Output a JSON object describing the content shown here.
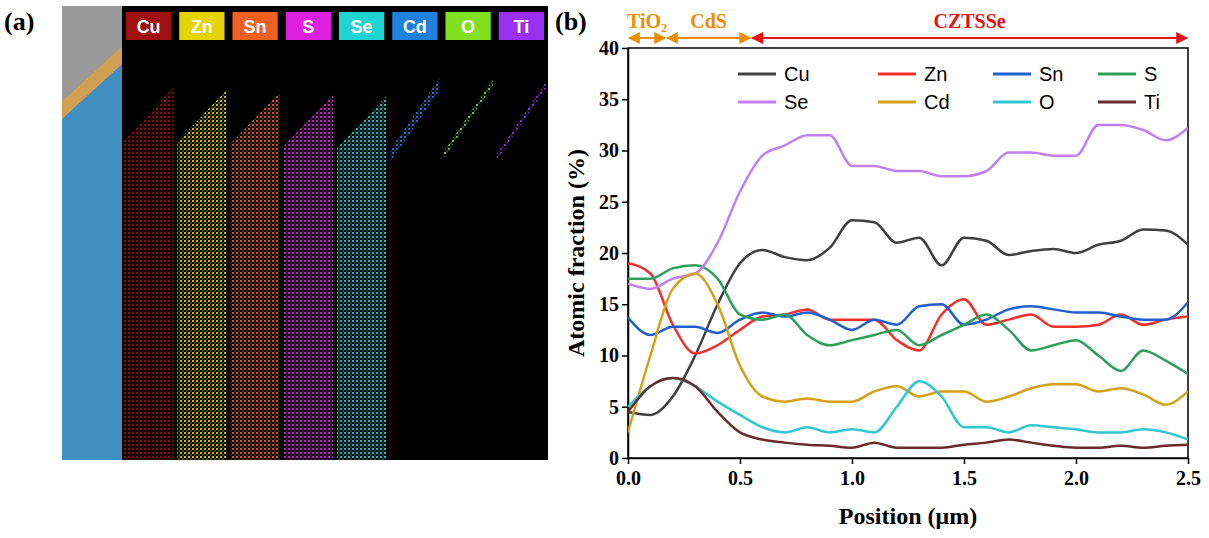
{
  "panel_a": {
    "letter": "(a)",
    "elements": [
      {
        "name": "Cu",
        "color": "#a01010"
      },
      {
        "name": "Zn",
        "color": "#e6d400"
      },
      {
        "name": "Sn",
        "color": "#f0601e"
      },
      {
        "name": "S",
        "color": "#e020e0"
      },
      {
        "name": "Se",
        "color": "#20d4d4"
      },
      {
        "name": "Cd",
        "color": "#2080e0"
      },
      {
        "name": "O",
        "color": "#80e020"
      },
      {
        "name": "Ti",
        "color": "#9a30f0"
      }
    ]
  },
  "chart_data": {
    "type": "line",
    "letter": "(b)",
    "x_label": "Position (μm)",
    "y_label": "Atomic fraction (%)",
    "x": [
      0,
      0.1,
      0.2,
      0.3,
      0.4,
      0.5,
      0.6,
      0.7,
      0.8,
      0.9,
      1.0,
      1.1,
      1.2,
      1.3,
      1.4,
      1.5,
      1.6,
      1.7,
      1.8,
      1.9,
      2.0,
      2.1,
      2.2,
      2.3,
      2.4,
      2.5
    ],
    "xlim": [
      0,
      2.5
    ],
    "xticks": [
      {
        "value": 0,
        "label": "0.0"
      },
      {
        "value": 0.5,
        "label": "0.5"
      },
      {
        "value": 1,
        "label": "1.0"
      },
      {
        "value": 1.5,
        "label": "1.5"
      },
      {
        "value": 2,
        "label": "2.0"
      },
      {
        "value": 2.5,
        "label": "2.5"
      }
    ],
    "ylim": [
      0,
      40
    ],
    "yticks": [
      0,
      5,
      10,
      15,
      20,
      25,
      30,
      35,
      40
    ],
    "legend": "top",
    "annotations": [
      {
        "text": "TiO₂",
        "x": [
          0,
          0.17
        ],
        "color": "#f08c00"
      },
      {
        "text": "CdS",
        "x": [
          0.17,
          0.55
        ],
        "color": "#f08c00"
      },
      {
        "text": "CZTSSe",
        "x": [
          0.55,
          2.5
        ],
        "color": "#e81010"
      }
    ],
    "series": [
      {
        "name": "Cu",
        "color": "#404040",
        "values": [
          4.5,
          4.2,
          6,
          10,
          15,
          19,
          20.3,
          19.6,
          19.3,
          20.5,
          23.2,
          23,
          21,
          21.5,
          18.8,
          21.5,
          21.2,
          19.8,
          20.2,
          20.4,
          20,
          20.8,
          21.2,
          22.3,
          22.2,
          20.8
        ]
      },
      {
        "name": "Zn",
        "color": "#f0302a",
        "values": [
          19,
          18,
          13,
          10.2,
          11,
          12.5,
          13.8,
          14,
          14.5,
          13.5,
          13.5,
          13.5,
          11.5,
          10.5,
          14,
          15.5,
          13,
          13.5,
          14,
          12.8,
          12.8,
          13,
          14,
          13,
          13.5,
          13.8
        ]
      },
      {
        "name": "Sn",
        "color": "#1f5fcf",
        "values": [
          13.7,
          12,
          12.8,
          12.8,
          12.2,
          13.5,
          14.2,
          13.8,
          14.2,
          13.5,
          12.5,
          13.5,
          13,
          14.8,
          15,
          13,
          13.5,
          14.5,
          14.8,
          14.5,
          14.2,
          14.2,
          13.8,
          13.5,
          13.5,
          15.2
        ]
      },
      {
        "name": "S",
        "color": "#2ca05a",
        "values": [
          17.5,
          17.5,
          18.5,
          18.8,
          17.5,
          14,
          13.5,
          14,
          12,
          11,
          11.5,
          12,
          12.5,
          11,
          12,
          13,
          14,
          12.5,
          10.5,
          11,
          11.5,
          10,
          8.5,
          10.5,
          9.5,
          8.2
        ]
      },
      {
        "name": "Se",
        "color": "#c080f0",
        "values": [
          17,
          16.5,
          17.5,
          18,
          21,
          26,
          29.5,
          30.5,
          31.5,
          31.5,
          28.5,
          28.5,
          28,
          28,
          27.5,
          27.5,
          28,
          29.8,
          29.8,
          29.5,
          29.5,
          32.5,
          32.5,
          32,
          31,
          32.2
        ]
      },
      {
        "name": "Cd",
        "color": "#d4a017",
        "values": [
          2.5,
          10,
          16.5,
          18,
          15,
          9,
          6,
          5.5,
          5.8,
          5.5,
          5.5,
          6.5,
          7,
          6,
          6.5,
          6.5,
          5.5,
          6,
          6.8,
          7.2,
          7.2,
          6.5,
          6.8,
          6.2,
          5.2,
          6.5
        ]
      },
      {
        "name": "O",
        "color": "#30c8d0",
        "values": [
          5,
          7,
          7.8,
          7,
          5.5,
          4.2,
          3,
          2.5,
          3,
          2.5,
          2.8,
          2.5,
          5,
          7.5,
          6,
          3,
          3,
          2.5,
          3.2,
          3,
          2.8,
          2.5,
          2.5,
          2.8,
          2.5,
          1.8
        ]
      },
      {
        "name": "Ti",
        "color": "#6b2a2a",
        "values": [
          4.5,
          7,
          7.8,
          7,
          4.5,
          2.5,
          1.8,
          1.5,
          1.3,
          1.2,
          1,
          1.5,
          1,
          1,
          1,
          1.3,
          1.5,
          1.8,
          1.5,
          1.2,
          1,
          1,
          1.2,
          1,
          1.2,
          1.3
        ]
      }
    ]
  }
}
